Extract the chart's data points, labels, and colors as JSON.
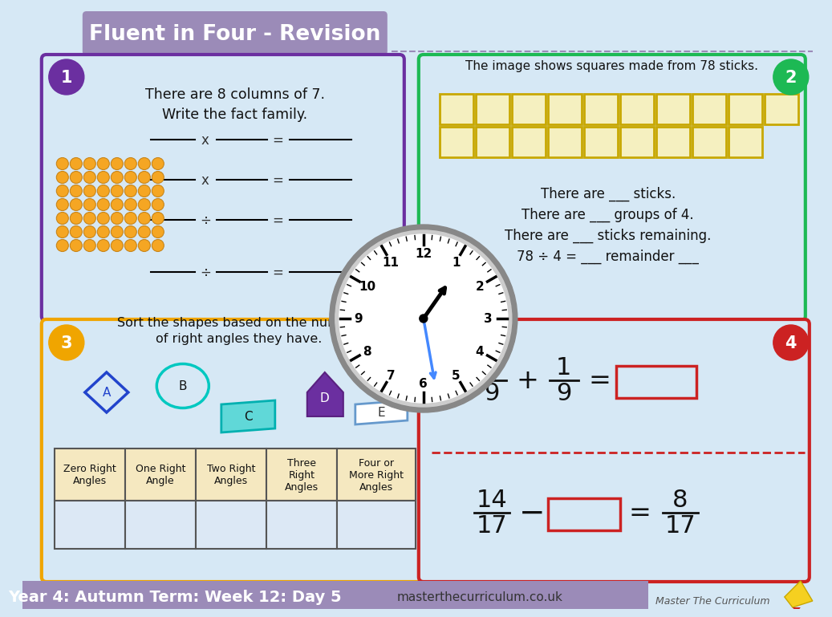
{
  "title": "Fluent in Four - Revision",
  "title_bg": "#9b8bb8",
  "bg_color": "#d6e8f5",
  "footer_text": "Year 4: Autumn Term: Week 12: Day 5",
  "footer_bg": "#9b8bb8",
  "website": "masterthecurriculum.co.uk",
  "q1_text1": "There are 8 columns of 7.",
  "q1_text2": "Write the fact family.",
  "q2_header": "The image shows squares made from 78 sticks.",
  "q2_text1": "There are ___ sticks.",
  "q2_text2": "There are ___ groups of 4.",
  "q2_text3": "There are ___ sticks remaining.",
  "q2_text4": "78 ÷ 4 = ___ remainder ___",
  "q3_text1": "Sort the shapes based on the number",
  "q3_text2": "of right angles they have.",
  "circle1_color": "#6b2fa0",
  "circle2_color": "#1db954",
  "circle3_color": "#f0a500",
  "circle4_color": "#cc2222",
  "box1_border": "#6b2fa0",
  "box2_border": "#1db954",
  "box3_border": "#f0a500",
  "box4_border": "#cc2222",
  "dot_color": "#f5a623",
  "dot_outline": "#c8851a",
  "sq_fill": "#f5f0c0",
  "sq_border": "#c8a800",
  "table_header_fill": "#f5e8c0",
  "table_body_fill": "#dce8f5",
  "clock_outer": "#555555",
  "clock_face": "#ffffff",
  "hand_hour": "#222222",
  "hand_min": "#4488ff"
}
